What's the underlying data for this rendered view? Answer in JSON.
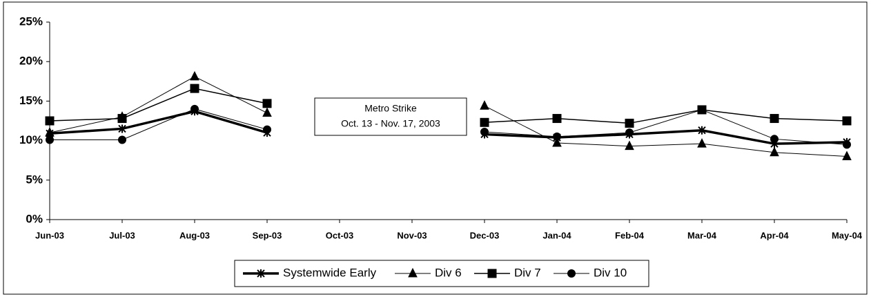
{
  "chart_data": {
    "type": "line",
    "categories": [
      "Jun-03",
      "Jul-03",
      "Aug-03",
      "Sep-03",
      "Oct-03",
      "Nov-03",
      "Dec-03",
      "Jan-04",
      "Feb-04",
      "Mar-04",
      "Apr-04",
      "May-04"
    ],
    "series": [
      {
        "name": "Systemwide Early",
        "color": "#000000",
        "marker": "star",
        "line_width": 3.5,
        "values": [
          10.9,
          11.5,
          13.7,
          11.0,
          null,
          null,
          10.8,
          10.4,
          10.8,
          11.3,
          9.6,
          9.8
        ]
      },
      {
        "name": "Div 6",
        "color": "#000000",
        "marker": "triangle",
        "line_width": 1,
        "values": [
          11.0,
          13.0,
          18.1,
          13.5,
          null,
          null,
          14.4,
          9.7,
          9.3,
          9.6,
          8.5,
          8.0
        ]
      },
      {
        "name": "Div 7",
        "color": "#000000",
        "marker": "square",
        "line_width": 1.5,
        "values": [
          12.5,
          12.8,
          16.6,
          14.7,
          null,
          null,
          12.3,
          12.8,
          12.2,
          13.9,
          12.8,
          12.5
        ]
      },
      {
        "name": "Div 10",
        "color": "#000000",
        "marker": "circle",
        "line_width": 1,
        "values": [
          10.1,
          10.1,
          14.0,
          11.4,
          null,
          null,
          11.1,
          10.5,
          11.0,
          13.9,
          10.2,
          9.5
        ]
      }
    ],
    "ylim": [
      0,
      25
    ],
    "yticks": [
      {
        "value": 0,
        "label": "0%"
      },
      {
        "value": 5,
        "label": "5%"
      },
      {
        "value": 10,
        "label": "10%"
      },
      {
        "value": 15,
        "label": "15%"
      },
      {
        "value": 20,
        "label": "20%"
      },
      {
        "value": 25,
        "label": "25%"
      }
    ],
    "annotation": [
      "Metro Strike",
      "Oct. 13 - Nov. 17, 2003"
    ],
    "legend": "bottom"
  }
}
